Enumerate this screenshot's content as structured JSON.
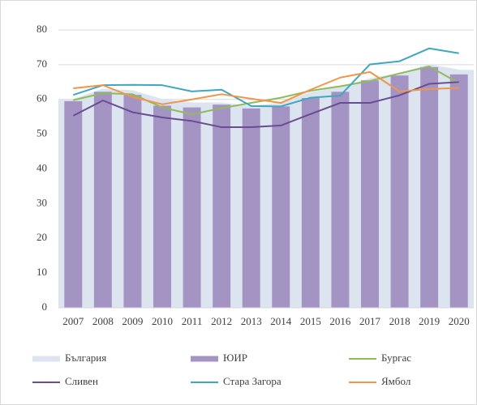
{
  "chart_data": {
    "type": "combo",
    "categories": [
      "2007",
      "2008",
      "2009",
      "2010",
      "2011",
      "2012",
      "2013",
      "2014",
      "2015",
      "2016",
      "2017",
      "2018",
      "2019",
      "2020"
    ],
    "ylim": [
      0,
      80
    ],
    "yticks": [
      0,
      10,
      20,
      30,
      40,
      50,
      60,
      70,
      80
    ],
    "grid": true,
    "legend": "bottom",
    "series": [
      {
        "name": "България",
        "kind": "area",
        "color": "#dce4f0",
        "values": [
          60,
          63,
          62.5,
          60,
          59,
          59,
          58,
          59,
          62,
          63.5,
          66,
          67.5,
          70,
          68.5
        ]
      },
      {
        "name": "ЮИР",
        "kind": "bar",
        "color": "#a494c4",
        "values": [
          59.5,
          62.2,
          61.3,
          58.2,
          57.7,
          58.5,
          57.4,
          58,
          60.4,
          62.2,
          65.5,
          66.9,
          69.3,
          67.2
        ]
      },
      {
        "name": "Бургас",
        "kind": "line",
        "color": "#8fbc5a",
        "values": [
          59.8,
          61.8,
          61.5,
          57.7,
          55.7,
          57.5,
          59,
          60.5,
          62.5,
          63.8,
          65.3,
          67.5,
          69.5,
          64.7
        ]
      },
      {
        "name": "Сливен",
        "kind": "line",
        "color": "#6a4c93",
        "values": [
          55.3,
          59.7,
          56.3,
          54.8,
          53.8,
          52,
          52,
          52.5,
          55.8,
          59,
          59,
          61.2,
          64.5,
          65
        ]
      },
      {
        "name": "Стара Загора",
        "kind": "line",
        "color": "#3fa7c0",
        "values": [
          61.3,
          64.1,
          64.2,
          64.1,
          62.3,
          62.8,
          58.1,
          58,
          60.5,
          61.1,
          70.1,
          71,
          74.7,
          73.3
        ]
      },
      {
        "name": "Ямбол",
        "kind": "line",
        "color": "#f0964a",
        "values": [
          63.2,
          64.1,
          60.7,
          58.6,
          60,
          61.5,
          60.2,
          59,
          62.8,
          66.3,
          67.9,
          62.3,
          63,
          63.3
        ]
      }
    ]
  }
}
